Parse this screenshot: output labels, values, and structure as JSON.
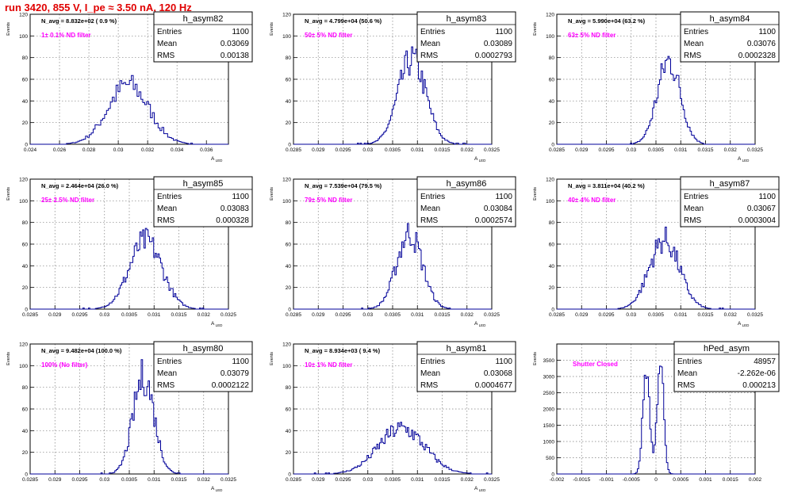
{
  "page": {
    "title": "run 3420,   855 V, I_pe ≈ 3.50 nA, 120 Hz"
  },
  "colors": {
    "histogram": "#000099",
    "annotation": "#ff00ff",
    "title": "#e00000",
    "grid": "#7f7f7f"
  },
  "chart_data": [
    {
      "type": "histogram",
      "name": "h_asym82",
      "stats": {
        "entries": "1100",
        "mean": "0.03069",
        "rms": "0.00138"
      },
      "navg": "N_avg = 8.832e+02 ( 0.9 %)",
      "filter": "1± 0.1% ND filter",
      "ylabel": "Events",
      "xlabel": "A_LED",
      "xlim": [
        0.024,
        0.0375
      ],
      "ylim": [
        0,
        120
      ],
      "xticks": [
        0.024,
        0.026,
        0.028,
        0.03,
        0.032,
        0.034,
        0.036
      ],
      "xtick_labels": [
        "0.024",
        "0.026",
        "0.028",
        "0.03",
        "0.032",
        "0.034",
        "0.036"
      ],
      "yticks": [
        0,
        20,
        40,
        60,
        80,
        100,
        120
      ],
      "mean": 0.03069,
      "rms": 0.00138,
      "peak": 55,
      "x_step_size": 0.00013
    },
    {
      "type": "histogram",
      "name": "h_asym83",
      "stats": {
        "entries": "1100",
        "mean": "0.03089",
        "rms": "0.0002793"
      },
      "navg": "N_avg = 4.799e+04 (50.6 %)",
      "filter": "50± 5% ND filter",
      "ylabel": "Events",
      "xlabel": "A_LED",
      "xlim": [
        0.0285,
        0.0325
      ],
      "ylim": [
        0,
        120
      ],
      "xticks": [
        0.0285,
        0.029,
        0.0295,
        0.03,
        0.0305,
        0.031,
        0.0315,
        0.032,
        0.0325
      ],
      "xtick_labels": [
        "0.0285",
        "0.029",
        "0.0295",
        "0.03",
        "0.0305",
        "0.031",
        "0.0315",
        "0.032",
        "0.0325"
      ],
      "yticks": [
        0,
        20,
        40,
        60,
        80,
        100,
        120
      ],
      "mean": 0.03089,
      "rms": 0.0002793,
      "peak": 78,
      "x_step_size": 2.8e-05
    },
    {
      "type": "histogram",
      "name": "h_asym84",
      "stats": {
        "entries": "1100",
        "mean": "0.03076",
        "rms": "0.0002328"
      },
      "navg": "N_avg = 5.990e+04 (63.2 %)",
      "filter": "63± 5% ND filter",
      "ylabel": "Events",
      "xlabel": "A_LED",
      "xlim": [
        0.0285,
        0.0325
      ],
      "ylim": [
        0,
        120
      ],
      "xticks": [
        0.0285,
        0.029,
        0.0295,
        0.03,
        0.0305,
        0.031,
        0.0315,
        0.032,
        0.0325
      ],
      "xtick_labels": [
        "0.0285",
        "0.029",
        "0.0295",
        "0.03",
        "0.0305",
        "0.031",
        "0.0315",
        "0.032",
        "0.0325"
      ],
      "yticks": [
        0,
        20,
        40,
        60,
        80,
        100,
        120
      ],
      "mean": 0.03076,
      "rms": 0.0002328,
      "peak": 77,
      "x_step_size": 2.8e-05
    },
    {
      "type": "histogram",
      "name": "h_asym85",
      "stats": {
        "entries": "1100",
        "mean": "0.03083",
        "rms": "0.000328"
      },
      "navg": "N_avg = 2.464e+04 (26.0 %)",
      "filter": "25± 2.5% ND filter",
      "ylabel": "Events",
      "xlabel": "A_LED",
      "xlim": [
        0.0285,
        0.0325
      ],
      "ylim": [
        0,
        120
      ],
      "xticks": [
        0.0285,
        0.029,
        0.0295,
        0.03,
        0.0305,
        0.031,
        0.0315,
        0.032,
        0.0325
      ],
      "xtick_labels": [
        "0.0285",
        "0.029",
        "0.0295",
        "0.03",
        "0.0305",
        "0.031",
        "0.0315",
        "0.032",
        "0.0325"
      ],
      "yticks": [
        0,
        20,
        40,
        60,
        80,
        100,
        120
      ],
      "mean": 0.03083,
      "rms": 0.000328,
      "peak": 63,
      "x_step_size": 2.8e-05
    },
    {
      "type": "histogram",
      "name": "h_asym86",
      "stats": {
        "entries": "1100",
        "mean": "0.03084",
        "rms": "0.0002574"
      },
      "navg": "N_avg = 7.539e+04 (79.5 %)",
      "filter": "79± 5% ND filter",
      "ylabel": "Events",
      "xlabel": "A_LED",
      "xlim": [
        0.0285,
        0.0325
      ],
      "ylim": [
        0,
        120
      ],
      "xticks": [
        0.0285,
        0.029,
        0.0295,
        0.03,
        0.0305,
        0.031,
        0.0315,
        0.032,
        0.0325
      ],
      "xtick_labels": [
        "0.0285",
        "0.029",
        "0.0295",
        "0.03",
        "0.0305",
        "0.031",
        "0.0315",
        "0.032",
        "0.0325"
      ],
      "yticks": [
        0,
        20,
        40,
        60,
        80,
        100,
        120
      ],
      "mean": 0.03084,
      "rms": 0.0002574,
      "peak": 70,
      "x_step_size": 2.8e-05
    },
    {
      "type": "histogram",
      "name": "h_asym87",
      "stats": {
        "entries": "1100",
        "mean": "0.03067",
        "rms": "0.0003004"
      },
      "navg": "N_avg = 3.811e+04 (40.2 %)",
      "filter": "40± 4% ND filter",
      "ylabel": "Events",
      "xlabel": "A_LED",
      "xlim": [
        0.0285,
        0.0325
      ],
      "ylim": [
        0,
        120
      ],
      "xticks": [
        0.0285,
        0.029,
        0.0295,
        0.03,
        0.0305,
        0.031,
        0.0315,
        0.032,
        0.0325
      ],
      "xtick_labels": [
        "0.0285",
        "0.029",
        "0.0295",
        "0.03",
        "0.0305",
        "0.031",
        "0.0315",
        "0.032",
        "0.0325"
      ],
      "yticks": [
        0,
        20,
        40,
        60,
        80,
        100,
        120
      ],
      "mean": 0.03067,
      "rms": 0.0003004,
      "peak": 64,
      "x_step_size": 2.8e-05
    },
    {
      "type": "histogram",
      "name": "h_asym80",
      "stats": {
        "entries": "1100",
        "mean": "0.03079",
        "rms": "0.0002122"
      },
      "navg": "N_avg = 9.482e+04 (100.0 %)",
      "filter": "100% (No filter)",
      "ylabel": "Events",
      "xlabel": "A_LED",
      "xlim": [
        0.0285,
        0.0325
      ],
      "ylim": [
        0,
        120
      ],
      "xticks": [
        0.0285,
        0.029,
        0.0295,
        0.03,
        0.0305,
        0.031,
        0.0315,
        0.032,
        0.0325
      ],
      "xtick_labels": [
        "0.0285",
        "0.029",
        "0.0295",
        "0.03",
        "0.0305",
        "0.031",
        "0.0315",
        "0.032",
        "0.0325"
      ],
      "yticks": [
        0,
        20,
        40,
        60,
        80,
        100,
        120
      ],
      "mean": 0.03079,
      "rms": 0.0002122,
      "peak": 90,
      "x_step_size": 2.8e-05
    },
    {
      "type": "histogram",
      "name": "h_asym81",
      "stats": {
        "entries": "1100",
        "mean": "0.03068",
        "rms": "0.0004677"
      },
      "navg": "N_avg = 8.934e+03 ( 9.4 %)",
      "filter": "10± 1% ND filter",
      "ylabel": "Events",
      "xlabel": "A_LED",
      "xlim": [
        0.0285,
        0.0325
      ],
      "ylim": [
        0,
        120
      ],
      "xticks": [
        0.0285,
        0.029,
        0.0295,
        0.03,
        0.0305,
        0.031,
        0.0315,
        0.032,
        0.0325
      ],
      "xtick_labels": [
        "0.0285",
        "0.029",
        "0.0295",
        "0.03",
        "0.0305",
        "0.031",
        "0.0315",
        "0.032",
        "0.0325"
      ],
      "yticks": [
        0,
        20,
        40,
        60,
        80,
        100,
        120
      ],
      "mean": 0.03068,
      "rms": 0.0004677,
      "peak": 42,
      "x_step_size": 2.8e-05
    },
    {
      "type": "histogram",
      "name": "hPed_asym",
      "stats": {
        "entries": "48957",
        "mean": "-2.262e-06",
        "rms": "0.000213"
      },
      "navg": "",
      "filter": "Shutter Closed",
      "ylabel": "Events",
      "xlabel": "",
      "xlim": [
        -0.002,
        0.002
      ],
      "ylim": [
        0,
        4000
      ],
      "xticks": [
        -0.002,
        -0.0015,
        -0.001,
        -0.0005,
        0,
        0.0005,
        0.001,
        0.0015,
        0.002
      ],
      "xtick_labels": [
        "-0.002",
        "-0.0015",
        "-0.001",
        "-0.0005",
        "0",
        "0.0005",
        "0.001",
        "0.0015",
        "0.002"
      ],
      "yticks": [
        0,
        500,
        1000,
        1500,
        2000,
        2500,
        3000,
        3500
      ],
      "ytick_labels": [
        "0",
        "500",
        "1000",
        "1500",
        "2000",
        "2500",
        "3000",
        "3500"
      ],
      "bimodal": true,
      "peak_left": 3250,
      "peak_right": 3600,
      "mean": 0.0,
      "rms": 0.000213,
      "peak": 3600,
      "x_step_size": 2.8e-05
    }
  ]
}
